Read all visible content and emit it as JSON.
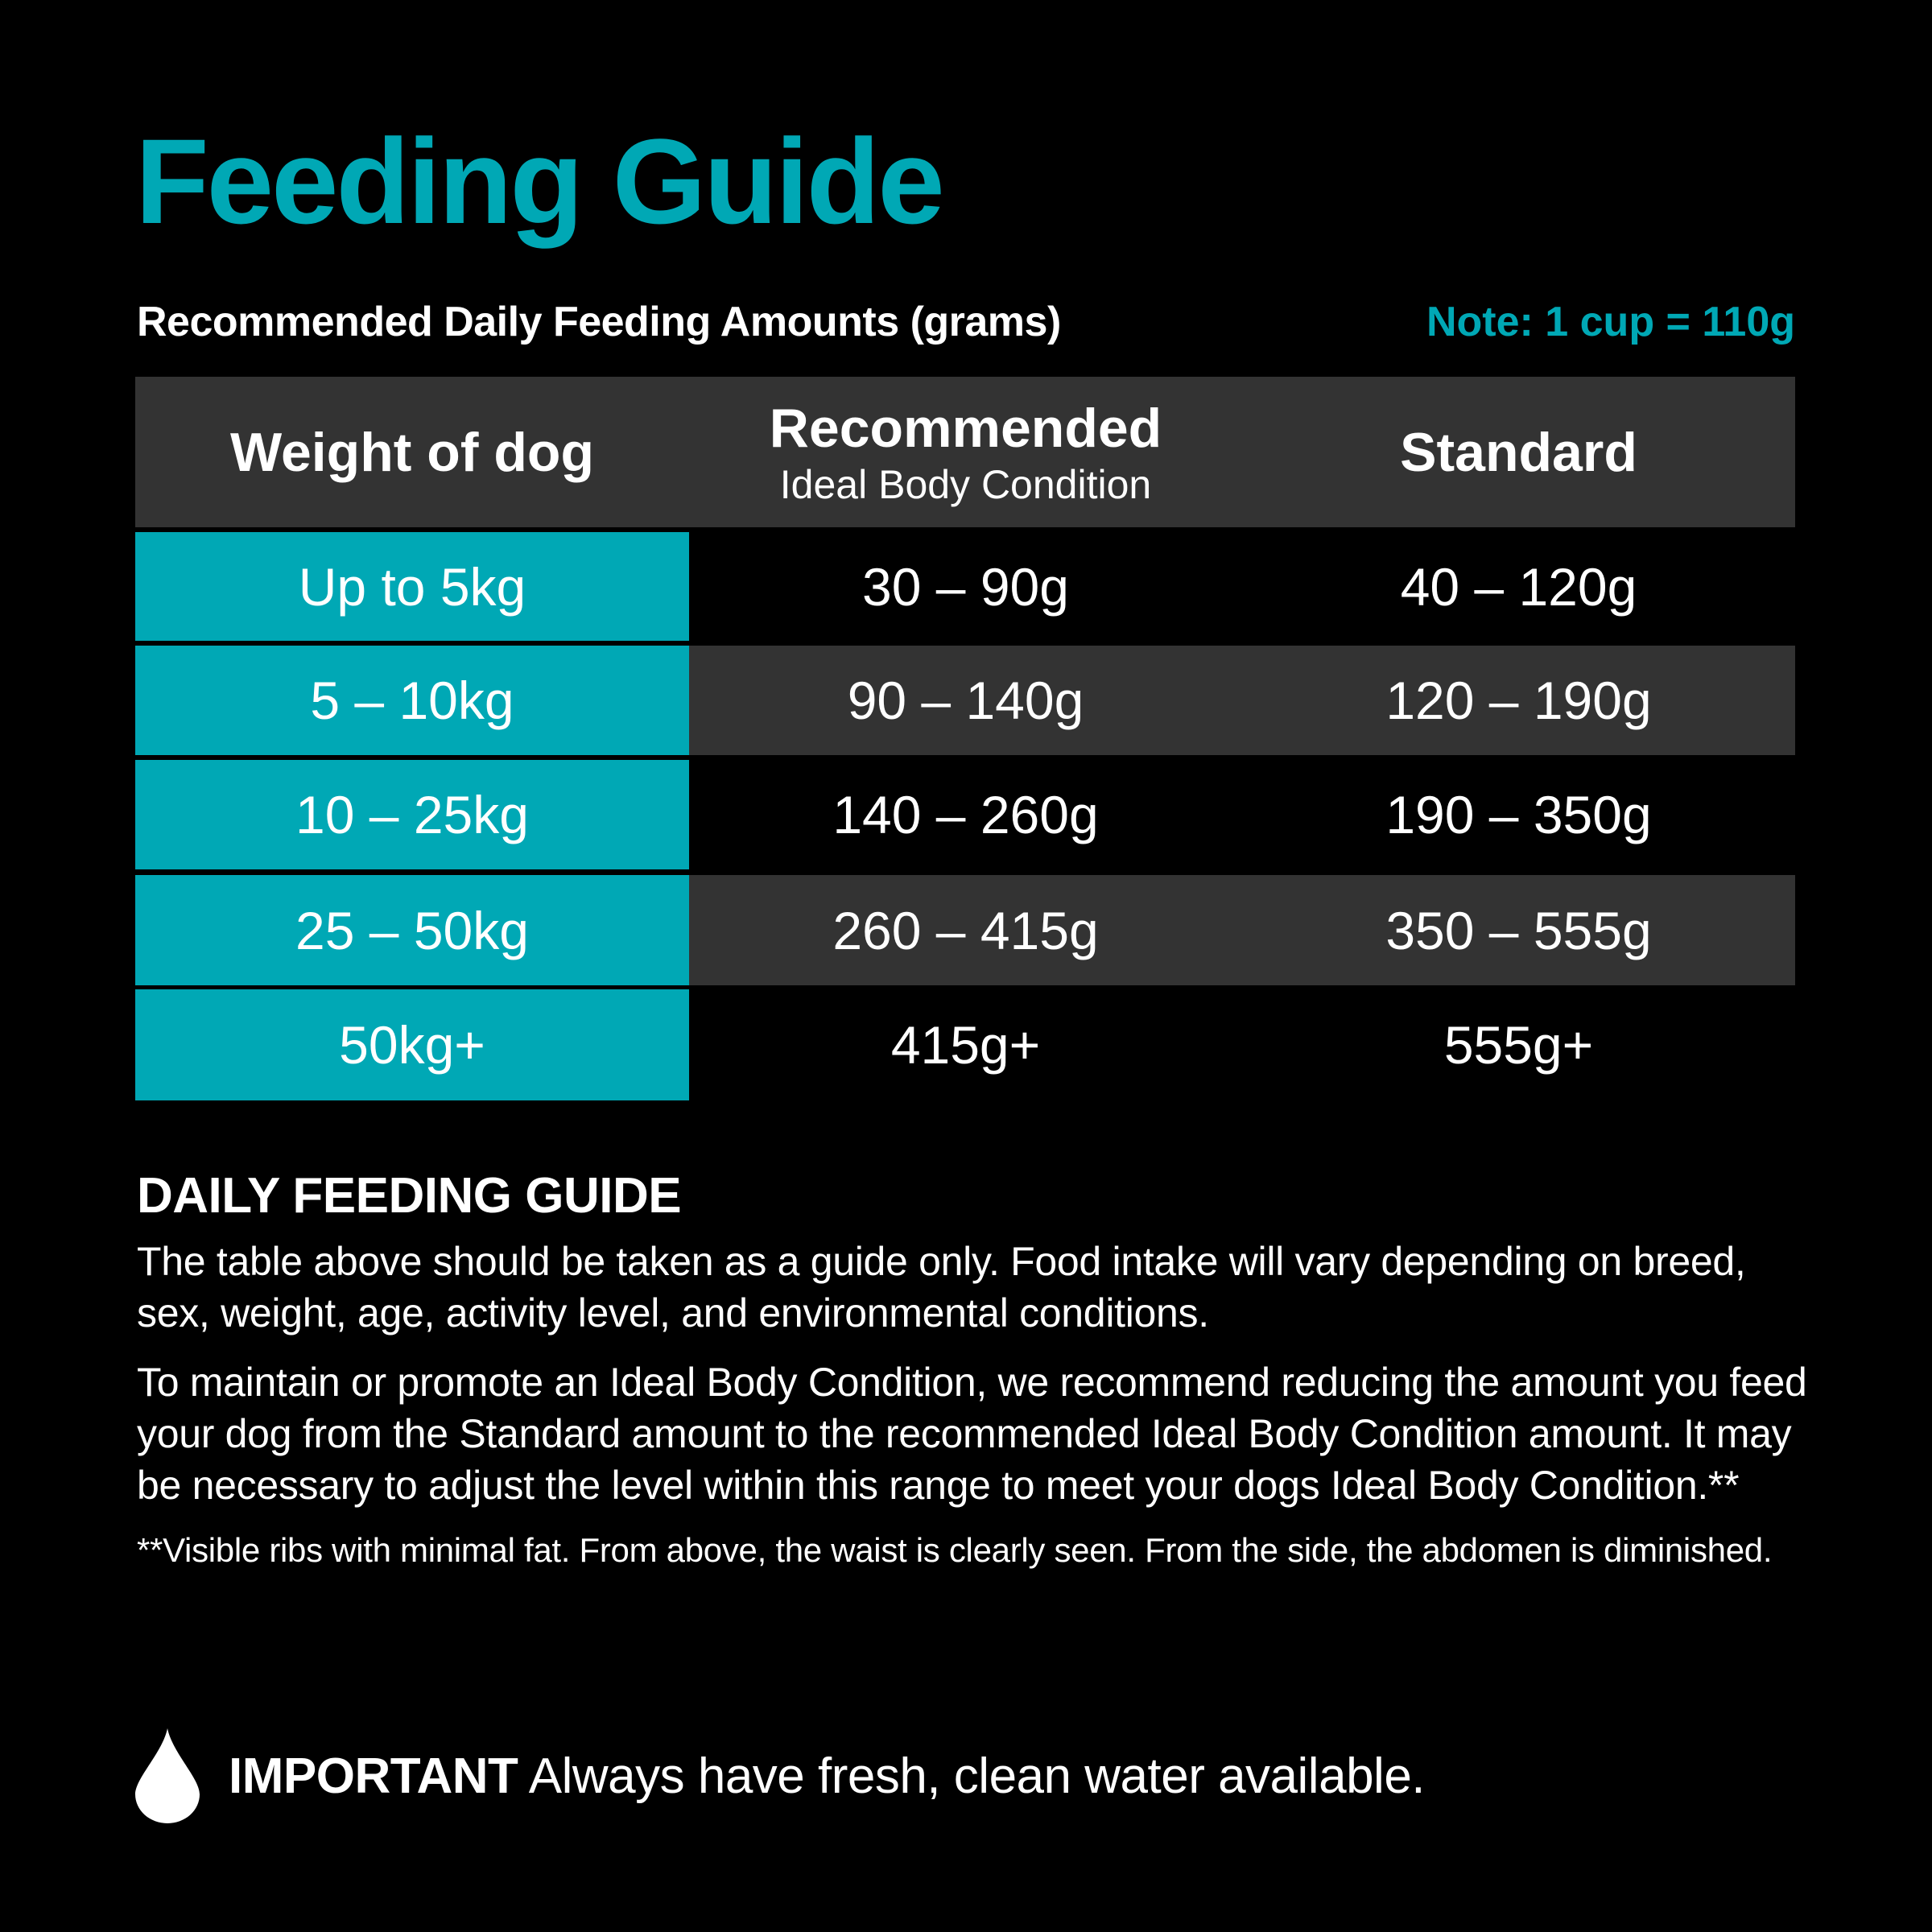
{
  "title": "Feeding Guide",
  "subtitle": "Recommended Daily Feeding Amounts (grams)",
  "note": "Note: 1 cup = 110g",
  "colors": {
    "accent": "#00A8B5",
    "background": "#000000",
    "row_shade": "#333333"
  },
  "table": {
    "headers": [
      {
        "label": "Weight of dog",
        "sublabel": ""
      },
      {
        "label": "Recommended",
        "sublabel": "Ideal Body Condition"
      },
      {
        "label": "Standard",
        "sublabel": ""
      }
    ],
    "rows": [
      [
        "Up to 5kg",
        "30 – 90g",
        "40 – 120g"
      ],
      [
        "5 – 10kg",
        "90 – 140g",
        "120 – 190g"
      ],
      [
        "10 – 25kg",
        "140 – 260g",
        "190 – 350g"
      ],
      [
        "25 – 50kg",
        "260 – 415g",
        "350 – 555g"
      ],
      [
        "50kg+",
        "415g+",
        "555g+"
      ]
    ]
  },
  "guide": {
    "heading": "DAILY FEEDING GUIDE",
    "paragraph1": "The table above should be taken as a guide only. Food intake will vary depending on breed, sex, weight, age, activity level, and environmental conditions.",
    "paragraph2": "To maintain or promote an Ideal Body Condition, we recommend reducing the amount you feed your dog from the Standard amount to the recommended Ideal Body Condition amount. It may be necessary to adjust the level within this range to meet your dogs Ideal Body Condition.**",
    "footnote": "**Visible ribs with minimal fat. From above, the waist is clearly seen. From the side, the abdomen is diminished."
  },
  "important": {
    "icon": "water-drop-icon",
    "label": "IMPORTANT",
    "text": " Always have fresh, clean water available."
  }
}
